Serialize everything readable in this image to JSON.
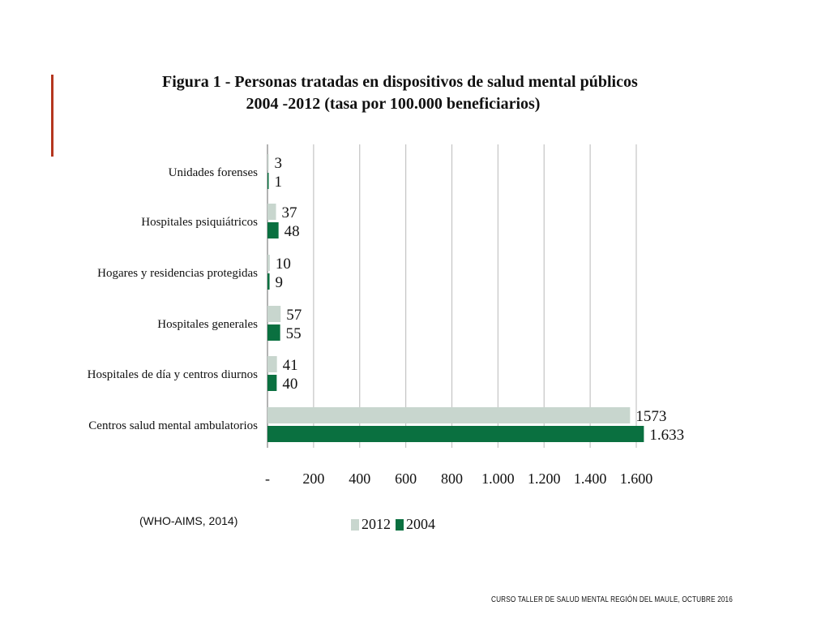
{
  "chart_data": {
    "type": "bar",
    "orientation": "horizontal",
    "title_line1": "Figura 1 - Personas tratadas en dispositivos de salud mental públicos",
    "title_line2": "2004 -2012 (tasa por 100.000 beneficiarios)",
    "categories": [
      "Unidades forenses",
      "Hospitales psiquiátricos",
      "Hogares y residencias protegidas",
      "Hospitales generales",
      "Hospitales de día y centros diurnos",
      "Centros salud mental ambulatorios"
    ],
    "series": [
      {
        "name": "2012",
        "color": "#c8d6ce",
        "values": [
          3,
          37,
          10,
          57,
          41,
          1573
        ],
        "labels": [
          "3",
          "37",
          "10",
          "57",
          "41",
          "1573"
        ]
      },
      {
        "name": "2004",
        "color": "#0a7040",
        "values": [
          1,
          48,
          9,
          55,
          40,
          1633
        ],
        "labels": [
          "1",
          "48",
          "9",
          "55",
          "40",
          "1.633"
        ]
      }
    ],
    "xlim": [
      0,
      1600
    ],
    "xticks": [
      0,
      200,
      400,
      600,
      800,
      1000,
      1200,
      1400,
      1600
    ],
    "xtick_labels": [
      "-",
      "200",
      "400",
      "600",
      "800",
      "1.000",
      "1.200",
      "1.400",
      "1.600"
    ],
    "grid": true,
    "legend_position": "bottom"
  },
  "source_note": "(WHO-AIMS, 2014)",
  "footer": "CURSO TALLER DE SALUD MENTAL REGIÓN DEL MAULE, OCTUBRE 2016"
}
